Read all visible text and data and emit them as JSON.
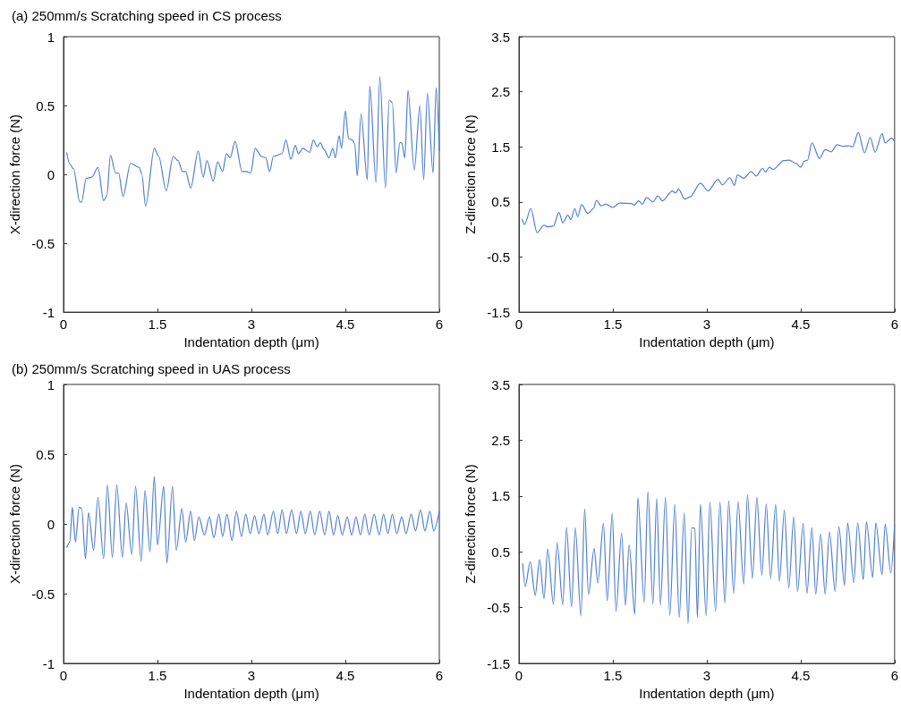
{
  "chart_data": [
    {
      "type": "line",
      "title": "(a) 250mm/s Scratching speed in CS process",
      "xlabel": "Indentation depth (μm)",
      "ylabel": "X-direction force (N)",
      "color": "#4f7fd0",
      "marker": "none",
      "xlim": [
        0,
        6
      ],
      "ylim": [
        -1,
        1
      ],
      "xticks": [
        0,
        1.5,
        3,
        4.5,
        6
      ],
      "yticks": [
        -1,
        -0.5,
        0,
        0.5,
        1
      ],
      "x": [
        0.05,
        0.1,
        0.16,
        0.26,
        0.29,
        0.36,
        0.45,
        0.55,
        0.64,
        0.69,
        0.75,
        0.83,
        0.88,
        0.95,
        1.07,
        1.21,
        1.25,
        1.31,
        1.45,
        1.52,
        1.64,
        1.75,
        1.83,
        1.9,
        1.95,
        2.03,
        2.15,
        2.23,
        2.29,
        2.39,
        2.46,
        2.54,
        2.6,
        2.66,
        2.74,
        2.85,
        2.92,
        2.99,
        3.06,
        3.16,
        3.23,
        3.29,
        3.35,
        3.49,
        3.55,
        3.63,
        3.7,
        3.75,
        3.82,
        3.93,
        3.99,
        4.05,
        4.1,
        4.16,
        4.24,
        4.3,
        4.34,
        4.4,
        4.44,
        4.5,
        4.55,
        4.61,
        4.65,
        4.69,
        4.75,
        4.85,
        4.89,
        4.99,
        5.05,
        5.14,
        5.2,
        5.25,
        5.31,
        5.37,
        5.4,
        5.45,
        5.5,
        5.6,
        5.69,
        5.75,
        5.81,
        5.9,
        5.95,
        6.0
      ],
      "values": [
        0.16,
        0.075,
        0.04,
        -0.2,
        -0.2,
        -0.03,
        -0.02,
        0.05,
        -0.19,
        -0.16,
        0.14,
        0.01,
        0.01,
        -0.16,
        0.08,
        0.05,
        0,
        -0.23,
        0.19,
        0.13,
        -0.12,
        0.13,
        0.1,
        0.02,
        0.02,
        -0.1,
        0.17,
        -0.02,
        0.1,
        -0.05,
        0.09,
        0.02,
        0.15,
        0.12,
        0.24,
        0.02,
        0.02,
        0.01,
        0.19,
        0.13,
        0.12,
        0.02,
        0.13,
        0.15,
        0.25,
        0.11,
        0.21,
        0.15,
        0.19,
        0.16,
        0.25,
        0.2,
        0.23,
        0.18,
        0.12,
        0.19,
        0.12,
        0.28,
        0.19,
        0.46,
        0.26,
        0.25,
        0.22,
        -0.01,
        0.44,
        -0.04,
        0.64,
        -0.06,
        0.71,
        -0.1,
        0.54,
        0.52,
        0.01,
        0.23,
        0.23,
        0.12,
        0.61,
        0.03,
        0.5,
        -0.04,
        0.59,
        0.01,
        0.63,
        0.17
      ]
    },
    {
      "type": "line",
      "xlabel": "Indentation depth (μm)",
      "ylabel": "Z-direction force (N)",
      "color": "#4f7fd0",
      "marker": "none",
      "xlim": [
        0,
        6
      ],
      "ylim": [
        -1.5,
        3.5
      ],
      "xticks": [
        0,
        1.5,
        3,
        4.5,
        6
      ],
      "yticks": [
        -1.5,
        -0.5,
        0.5,
        1.5,
        2.5,
        3.5
      ],
      "x": [
        0.05,
        0.09,
        0.19,
        0.29,
        0.4,
        0.45,
        0.55,
        0.64,
        0.7,
        0.78,
        0.83,
        0.89,
        0.94,
        1.0,
        1.1,
        1.19,
        1.24,
        1.31,
        1.39,
        1.5,
        1.61,
        1.8,
        1.84,
        1.91,
        1.97,
        2.04,
        2.14,
        2.22,
        2.29,
        2.45,
        2.5,
        2.55,
        2.65,
        2.73,
        2.9,
        3.02,
        3.18,
        3.25,
        3.37,
        3.44,
        3.49,
        3.59,
        3.71,
        3.79,
        3.89,
        3.94,
        4.0,
        4.06,
        4.23,
        4.32,
        4.42,
        4.5,
        4.56,
        4.61,
        4.68,
        4.8,
        4.89,
        4.99,
        5.08,
        5.18,
        5.27,
        5.33,
        5.42,
        5.52,
        5.61,
        5.69,
        5.8,
        5.85,
        5.95,
        6.0
      ],
      "values": [
        0.19,
        0.09,
        0.38,
        -0.06,
        0.08,
        0.05,
        0.06,
        0.31,
        0.12,
        0.26,
        0.18,
        0.38,
        0.23,
        0.45,
        0.29,
        0.38,
        0.53,
        0.43,
        0.46,
        0.4,
        0.48,
        0.47,
        0.44,
        0.52,
        0.46,
        0.58,
        0.5,
        0.61,
        0.52,
        0.7,
        0.66,
        0.73,
        0.55,
        0.59,
        0.84,
        0.7,
        0.91,
        0.81,
        0.94,
        0.8,
        0.99,
        0.93,
        1.05,
        0.97,
        1.11,
        1.04,
        1.13,
        1.09,
        1.25,
        1.26,
        1.2,
        1.13,
        1.24,
        1.26,
        1.57,
        1.29,
        1.45,
        1.41,
        1.54,
        1.51,
        1.52,
        1.5,
        1.76,
        1.39,
        1.67,
        1.4,
        1.74,
        1.57,
        1.66,
        1.6
      ]
    },
    {
      "type": "line",
      "title": "(b) 250mm/s Scratching speed in UAS process",
      "xlabel": "Indentation depth (μm)",
      "ylabel": "X-direction force (N)",
      "color": "#4f7fd0",
      "marker": "none",
      "xlim": [
        0,
        6
      ],
      "ylim": [
        -1,
        1
      ],
      "xticks": [
        0,
        1.5,
        3,
        4.5,
        6
      ],
      "yticks": [
        -1,
        -0.5,
        0,
        0.5,
        1
      ],
      "x": [
        0.05,
        0.1,
        0.14,
        0.19,
        0.25,
        0.29,
        0.35,
        0.4,
        0.48,
        0.55,
        0.64,
        0.7,
        0.78,
        0.85,
        0.94,
        1.0,
        1.09,
        1.15,
        1.24,
        1.3,
        1.38,
        1.45,
        1.5,
        1.6,
        1.65,
        1.74,
        1.8,
        1.89,
        1.95,
        2.03,
        2.09,
        2.16,
        2.25,
        2.33,
        2.4,
        2.48,
        2.54,
        2.61,
        2.69,
        2.76,
        2.84,
        2.91,
        2.98,
        3.05,
        3.12,
        3.2,
        3.26,
        3.35,
        3.42,
        3.49,
        3.56,
        3.64,
        3.72,
        3.79,
        3.86,
        3.94,
        4.01,
        4.09,
        4.17,
        4.24,
        4.31,
        4.38,
        4.45,
        4.53,
        4.6,
        4.67,
        4.74,
        4.81,
        4.88,
        4.96,
        5.04,
        5.11,
        5.18,
        5.25,
        5.32,
        5.4,
        5.47,
        5.55,
        5.62,
        5.7,
        5.77,
        5.85,
        5.91,
        6.0
      ],
      "values": [
        -0.17,
        -0.13,
        0.12,
        -0.13,
        0.12,
        0.11,
        -0.25,
        0.08,
        -0.19,
        0.19,
        -0.25,
        0.28,
        -0.24,
        0.28,
        -0.24,
        0.15,
        -0.22,
        0.27,
        -0.27,
        0.24,
        -0.2,
        0.34,
        -0.15,
        0.27,
        -0.28,
        0.27,
        -0.19,
        0.11,
        -0.13,
        0.09,
        -0.12,
        0.05,
        -0.08,
        0.05,
        -0.1,
        0.07,
        -0.09,
        0.07,
        -0.12,
        0.09,
        -0.09,
        0.07,
        -0.07,
        0.06,
        -0.07,
        0.07,
        -0.08,
        0.09,
        -0.07,
        0.1,
        -0.07,
        0.1,
        -0.07,
        0.09,
        -0.07,
        0.09,
        -0.08,
        0.09,
        -0.08,
        0.09,
        -0.08,
        0.06,
        -0.08,
        0.05,
        -0.08,
        0.05,
        -0.08,
        0.07,
        -0.08,
        0.07,
        -0.08,
        0.07,
        -0.07,
        0.07,
        -0.07,
        0.05,
        -0.07,
        0.07,
        -0.05,
        0.1,
        -0.05,
        0.09,
        -0.05,
        0.09
      ]
    },
    {
      "type": "line",
      "xlabel": "Indentation depth (μm)",
      "ylabel": "Z-direction force (N)",
      "color": "#4f7fd0",
      "marker": "none",
      "xlim": [
        0,
        6
      ],
      "ylim": [
        -1.5,
        3.5
      ],
      "xticks": [
        0,
        1.5,
        3,
        4.5,
        6
      ],
      "yticks": [
        -1.5,
        -0.5,
        0.5,
        1.5,
        2.5,
        3.5
      ],
      "x": [
        0.06,
        0.1,
        0.18,
        0.26,
        0.33,
        0.4,
        0.46,
        0.55,
        0.61,
        0.7,
        0.76,
        0.84,
        0.9,
        0.99,
        1.05,
        1.11,
        1.2,
        1.26,
        1.35,
        1.41,
        1.49,
        1.55,
        1.64,
        1.7,
        1.76,
        1.85,
        1.9,
        2.0,
        2.06,
        2.14,
        2.2,
        2.26,
        2.34,
        2.41,
        2.49,
        2.56,
        2.64,
        2.7,
        2.76,
        2.81,
        2.85,
        2.9,
        2.99,
        3.05,
        3.14,
        3.21,
        3.29,
        3.35,
        3.43,
        3.5,
        3.59,
        3.65,
        3.73,
        3.8,
        3.88,
        3.95,
        4.02,
        4.1,
        4.16,
        4.24,
        4.31,
        4.39,
        4.45,
        4.54,
        4.6,
        4.68,
        4.74,
        4.82,
        4.89,
        4.96,
        5.05,
        5.11,
        5.2,
        5.25,
        5.35,
        5.41,
        5.5,
        5.55,
        5.65,
        5.7,
        5.8,
        5.85,
        5.94,
        6.0
      ],
      "values": [
        0.29,
        -0.12,
        0.32,
        -0.28,
        0.36,
        -0.34,
        0.55,
        -0.44,
        0.66,
        -0.45,
        0.94,
        -0.49,
        0.93,
        -0.65,
        1.27,
        -0.27,
        0.56,
        -0.06,
        1.01,
        -0.38,
        1.19,
        -0.57,
        0.84,
        -0.46,
        0.62,
        -0.62,
        1.47,
        -0.41,
        1.58,
        -0.44,
        1.46,
        -0.46,
        1.48,
        -0.64,
        1.35,
        -0.68,
        1.2,
        -0.79,
        0.93,
        0.92,
        -0.68,
        1.35,
        -0.65,
        1.39,
        -0.57,
        1.39,
        -0.42,
        1.41,
        -0.25,
        1.4,
        -0.08,
        1.52,
        0.02,
        1.48,
        0.08,
        1.36,
        0.02,
        1.35,
        -0.03,
        1.25,
        -0.15,
        1.13,
        -0.21,
        1.01,
        -0.25,
        0.93,
        -0.26,
        0.82,
        -0.26,
        0.86,
        -0.21,
        0.95,
        -0.1,
        1.02,
        -0.05,
        1.02,
        0.0,
        1.04,
        0.04,
        1.02,
        0.09,
        1.0,
        0.12,
        0.98
      ]
    }
  ]
}
